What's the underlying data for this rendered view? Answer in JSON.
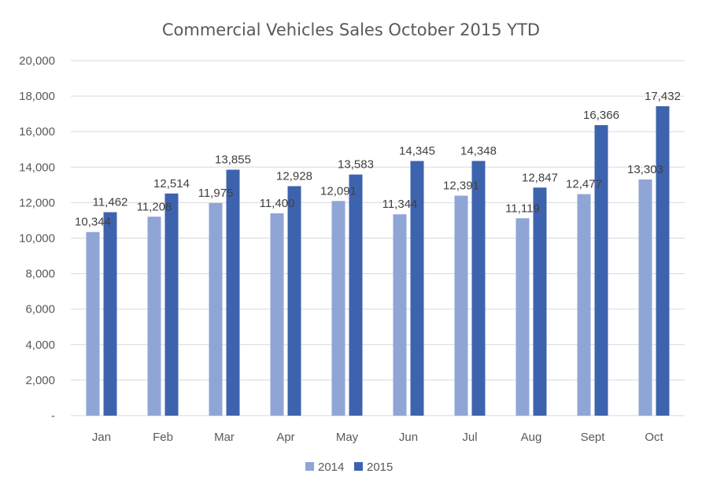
{
  "chart_data": {
    "type": "bar",
    "title": "Commercial Vehicles Sales October 2015 YTD",
    "xlabel": "",
    "ylabel": "",
    "categories": [
      "Jan",
      "Feb",
      "Mar",
      "Apr",
      "May",
      "Jun",
      "Jul",
      "Aug",
      "Sept",
      "Oct"
    ],
    "series": [
      {
        "name": "2014",
        "color": "#8FA5D6",
        "values": [
          10344,
          11208,
          11975,
          11400,
          12091,
          11344,
          12391,
          11119,
          12477,
          13303
        ],
        "labels": [
          "10,344",
          "11,208",
          "11,975",
          "11,400",
          "12,091",
          "11,344",
          "12,391",
          "11,119",
          "12,477",
          "13,303"
        ]
      },
      {
        "name": "2015",
        "color": "#3E63AE",
        "values": [
          11462,
          12514,
          13855,
          12928,
          13583,
          14345,
          14348,
          12847,
          16366,
          17432
        ],
        "labels": [
          "11,462",
          "12,514",
          "13,855",
          "12,928",
          "13,583",
          "14,345",
          "14,348",
          "12,847",
          "16,366",
          "17,432"
        ]
      }
    ],
    "ylim": [
      0,
      20000
    ],
    "yticks": [
      0,
      2000,
      4000,
      6000,
      8000,
      10000,
      12000,
      14000,
      16000,
      18000,
      20000
    ],
    "ytick_labels": [
      "-",
      "2,000",
      "4,000",
      "6,000",
      "8,000",
      "10,000",
      "12,000",
      "14,000",
      "16,000",
      "18,000",
      "20,000"
    ],
    "grid": true,
    "legend": "bottom"
  }
}
